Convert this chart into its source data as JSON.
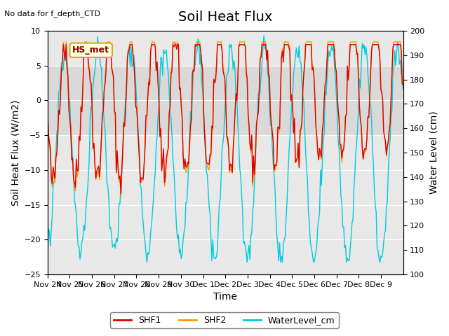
{
  "title": "Soil Heat Flux",
  "top_left_text": "No data for f_depth_CTD",
  "annotation_text": "HS_met",
  "ylabel_left": "Soil Heat Flux (W/m2)",
  "ylabel_right": "Water Level (cm)",
  "xlabel": "Time",
  "ylim_left": [
    -25,
    10
  ],
  "ylim_right": [
    100,
    200
  ],
  "yticks_left": [
    -25,
    -20,
    -15,
    -10,
    -5,
    0,
    5,
    10
  ],
  "yticks_right": [
    100,
    110,
    120,
    130,
    140,
    150,
    160,
    170,
    180,
    190,
    200
  ],
  "xtick_labels": [
    "Nov 24",
    "Nov 25",
    "Nov 26",
    "Nov 27",
    "Nov 28",
    "Nov 29",
    "Nov 30",
    "Dec 1",
    "Dec 2",
    "Dec 3",
    "Dec 4",
    "Dec 5",
    "Dec 6",
    "Dec 7",
    "Dec 8",
    "Dec 9"
  ],
  "shf1_color": "#dd0000",
  "shf2_color": "#ff9900",
  "water_color": "#00ccdd",
  "background_color": "#ffffff",
  "plot_bg_color": "#e8e8e8",
  "band_color": "#d0d0d0",
  "legend_labels": [
    "SHF1",
    "SHF2",
    "WaterLevel_cm"
  ],
  "title_fontsize": 14,
  "label_fontsize": 10,
  "tick_fontsize": 8
}
